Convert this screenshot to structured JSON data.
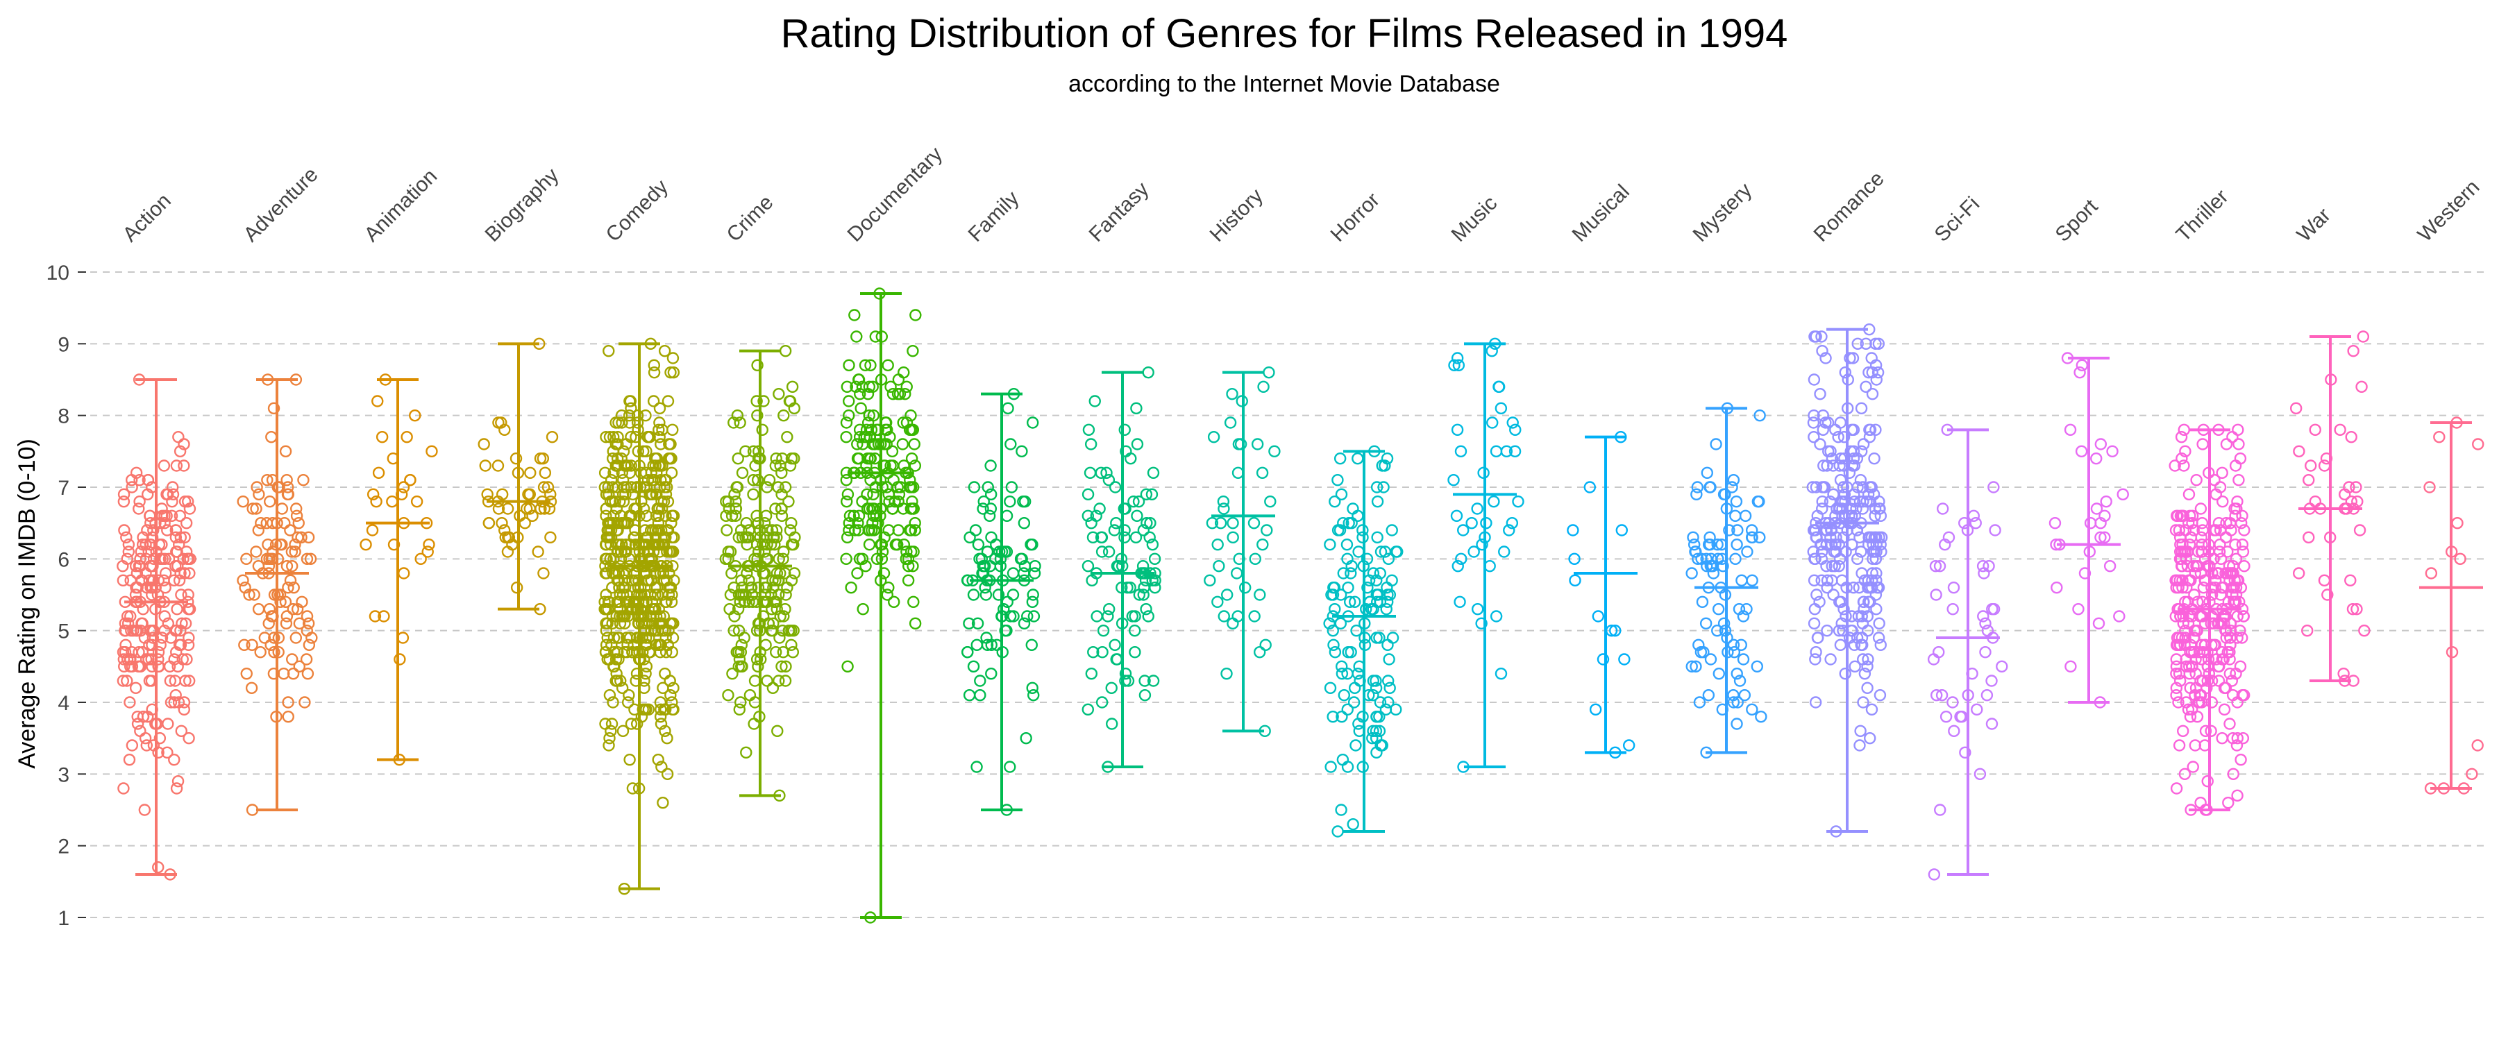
{
  "chart_data": {
    "type": "scatter",
    "title": "Rating Distribution of Genres for Films Released in 1994",
    "subtitle": "according to the Internet Movie Database",
    "xlabel": "",
    "ylabel": "Average Rating on IMDB (0-10)",
    "ylim": [
      1,
      10
    ],
    "yticks": [
      1,
      2,
      3,
      4,
      5,
      6,
      7,
      8,
      9,
      10
    ],
    "grid": "horizontal-dashed",
    "legend": "none",
    "categories": [
      "Action",
      "Adventure",
      "Animation",
      "Biography",
      "Comedy",
      "Crime",
      "Documentary",
      "Family",
      "Fantasy",
      "History",
      "Horror",
      "Music",
      "Musical",
      "Mystery",
      "Romance",
      "Sci-Fi",
      "Sport",
      "Thriller",
      "War",
      "Western"
    ],
    "colors": [
      "#F8766D",
      "#EC823C",
      "#DB8E00",
      "#C59900",
      "#A3A500",
      "#7CAE00",
      "#39B600",
      "#00BB4E",
      "#00BF7D",
      "#00C1A3",
      "#00BFC4",
      "#00BAE0",
      "#00B0F6",
      "#35A2FF",
      "#9590FF",
      "#C77CFF",
      "#E76BF3",
      "#FA62DB",
      "#FF62BC",
      "#FF6C91"
    ],
    "groups": [
      {
        "name": "Action",
        "min": 1.6,
        "max": 8.5,
        "mean": 5.4,
        "n": 240,
        "sd": 1.1
      },
      {
        "name": "Adventure",
        "min": 2.5,
        "max": 8.5,
        "mean": 5.8,
        "n": 110,
        "sd": 1.1
      },
      {
        "name": "Animation",
        "min": 3.2,
        "max": 8.5,
        "mean": 6.5,
        "n": 30,
        "sd": 1.1
      },
      {
        "name": "Biography",
        "min": 5.3,
        "max": 9.0,
        "mean": 6.8,
        "n": 50,
        "sd": 0.75
      },
      {
        "name": "Comedy",
        "min": 1.4,
        "max": 9.0,
        "mean": 5.9,
        "n": 520,
        "sd": 1.1
      },
      {
        "name": "Crime",
        "min": 2.7,
        "max": 8.9,
        "mean": 5.9,
        "n": 220,
        "sd": 1.05
      },
      {
        "name": "Documentary",
        "min": 1.0,
        "max": 9.7,
        "mean": 7.2,
        "n": 190,
        "sd": 0.9
      },
      {
        "name": "Family",
        "min": 2.5,
        "max": 8.3,
        "mean": 5.7,
        "n": 95,
        "sd": 1.1
      },
      {
        "name": "Fantasy",
        "min": 3.1,
        "max": 8.6,
        "mean": 5.8,
        "n": 95,
        "sd": 1.05
      },
      {
        "name": "History",
        "min": 3.6,
        "max": 8.6,
        "mean": 6.6,
        "n": 40,
        "sd": 1.0
      },
      {
        "name": "Horror",
        "min": 2.2,
        "max": 7.5,
        "mean": 5.2,
        "n": 130,
        "sd": 1.05
      },
      {
        "name": "Music",
        "min": 3.1,
        "max": 9.0,
        "mean": 6.9,
        "n": 40,
        "sd": 1.25
      },
      {
        "name": "Musical",
        "min": 3.3,
        "max": 7.7,
        "mean": 5.8,
        "n": 14,
        "sd": 1.3
      },
      {
        "name": "Mystery",
        "min": 3.3,
        "max": 8.1,
        "mean": 5.6,
        "n": 90,
        "sd": 1.05
      },
      {
        "name": "Romance",
        "min": 2.2,
        "max": 9.2,
        "mean": 6.5,
        "n": 260,
        "sd": 1.1
      },
      {
        "name": "Sci-Fi",
        "min": 1.6,
        "max": 7.8,
        "mean": 4.9,
        "n": 45,
        "sd": 1.2
      },
      {
        "name": "Sport",
        "min": 4.0,
        "max": 8.8,
        "mean": 6.2,
        "n": 28,
        "sd": 1.1
      },
      {
        "name": "Thriller",
        "min": 2.5,
        "max": 7.8,
        "mean": 5.3,
        "n": 320,
        "sd": 1.05
      },
      {
        "name": "War",
        "min": 4.3,
        "max": 9.1,
        "mean": 6.7,
        "n": 38,
        "sd": 1.15
      },
      {
        "name": "Western",
        "min": 2.8,
        "max": 7.9,
        "mean": 5.6,
        "n": 14,
        "sd": 1.5
      }
    ]
  }
}
